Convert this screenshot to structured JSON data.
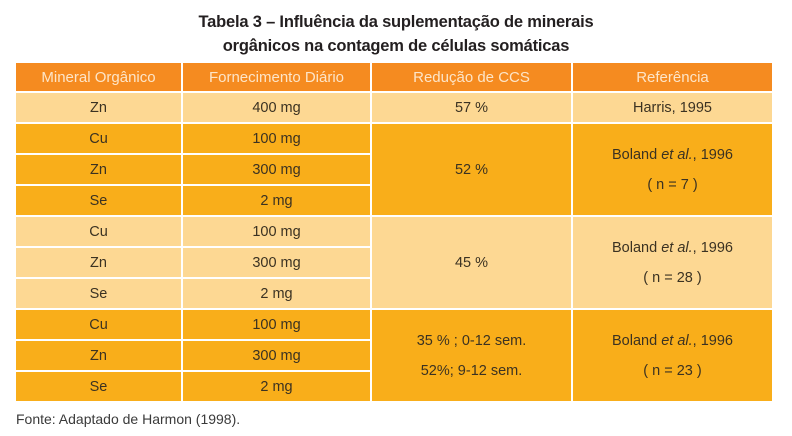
{
  "title": {
    "line1": "Tabela 3 – Influência da suplementação de minerais",
    "line2": "orgânicos na contagem de células somáticas"
  },
  "table": {
    "headers": [
      "Mineral Orgânico",
      "Fornecimento Diário",
      "Redução de CCS",
      "Referência"
    ],
    "groups": [
      {
        "rows": [
          {
            "mineral": "Zn",
            "dose": "400 mg"
          }
        ],
        "reduction": [
          "57 %"
        ],
        "reference": {
          "author": "Harris",
          "etal": "",
          "year": ", 1995",
          "n": ""
        }
      },
      {
        "rows": [
          {
            "mineral": "Cu",
            "dose": "100 mg"
          },
          {
            "mineral": "Zn",
            "dose": "300 mg"
          },
          {
            "mineral": "Se",
            "dose": "2 mg"
          }
        ],
        "reduction": [
          "52 %"
        ],
        "reference": {
          "author": "Boland ",
          "etal": "et al.",
          "year": ", 1996",
          "n": "( n = 7 )"
        }
      },
      {
        "rows": [
          {
            "mineral": "Cu",
            "dose": "100 mg"
          },
          {
            "mineral": "Zn",
            "dose": "300 mg"
          },
          {
            "mineral": "Se",
            "dose": "2 mg"
          }
        ],
        "reduction": [
          "45 %"
        ],
        "reference": {
          "author": "Boland ",
          "etal": "et al.",
          "year": ", 1996",
          "n": "( n = 28 )"
        }
      },
      {
        "rows": [
          {
            "mineral": "Cu",
            "dose": "100 mg"
          },
          {
            "mineral": "Zn",
            "dose": "300 mg"
          },
          {
            "mineral": "Se",
            "dose": "2 mg"
          }
        ],
        "reduction": [
          "35 % ; 0-12 sem.",
          "52%; 9-12 sem."
        ],
        "reference": {
          "author": "Boland ",
          "etal": "et al.",
          "year": ", 1996",
          "n": "( n = 23 )"
        }
      }
    ]
  },
  "footer": "Fonte: Adaptado de Harmon (1998).",
  "colors": {
    "header_bg": "#f58b20",
    "light_row": "#fdd893",
    "dark_row": "#f9ae1a"
  }
}
